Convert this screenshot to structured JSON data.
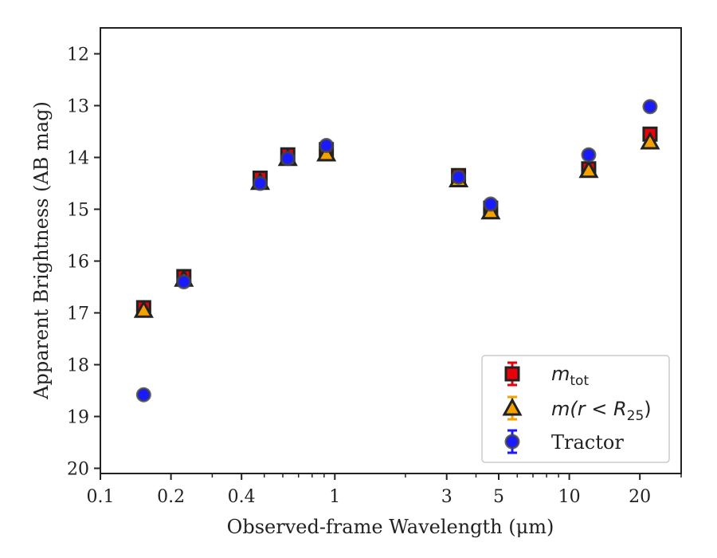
{
  "chart_data": {
    "type": "scatter",
    "xscale": "log",
    "yaxis_inverted": true,
    "xlabel": "Observed-frame Wavelength (μm)",
    "ylabel": "Apparent Brightness (AB mag)",
    "xlim": [
      0.1,
      30
    ],
    "ylim": [
      20.1,
      11.5
    ],
    "xticks": [
      0.1,
      0.2,
      0.4,
      1,
      3,
      5,
      10,
      20
    ],
    "xtick_labels": [
      "0.1",
      "0.2",
      "0.4",
      "1",
      "3",
      "5",
      "10",
      "20"
    ],
    "yticks": [
      12,
      13,
      14,
      15,
      16,
      17,
      18,
      19,
      20
    ],
    "ytick_labels": [
      "12",
      "13",
      "14",
      "15",
      "16",
      "17",
      "18",
      "19",
      "20"
    ],
    "legend_position": "bottom-right",
    "series": [
      {
        "name": "m_tot",
        "legend_label": {
          "main": "m",
          "sub": "tot"
        },
        "marker": "square",
        "color": "#e8000b",
        "x": [
          0.153,
          0.227,
          0.48,
          0.63,
          0.92,
          3.37,
          4.62,
          12.1,
          22.1
        ],
        "y": [
          16.9,
          16.3,
          14.4,
          13.95,
          13.85,
          14.35,
          14.98,
          14.22,
          13.55
        ]
      },
      {
        "name": "m(r<R25)",
        "legend_label": {
          "main": "m(r < R",
          "sub": "25",
          "tail": ")"
        },
        "marker": "triangle",
        "color": "#f5a200",
        "x": [
          0.153,
          0.227,
          0.48,
          0.63,
          0.92,
          3.37,
          4.62,
          12.1,
          22.1
        ],
        "y": [
          16.95,
          16.35,
          14.48,
          14.02,
          13.93,
          14.43,
          15.05,
          14.25,
          13.7
        ]
      },
      {
        "name": "Tractor",
        "legend_label": {
          "main": "Tractor"
        },
        "marker": "circle",
        "color": "#1a1aff",
        "x": [
          0.153,
          0.227,
          0.48,
          0.63,
          0.92,
          3.37,
          4.62,
          12.1,
          22.1
        ],
        "y": [
          18.58,
          16.4,
          14.5,
          14.02,
          13.77,
          14.38,
          14.9,
          13.95,
          13.02
        ]
      }
    ]
  }
}
